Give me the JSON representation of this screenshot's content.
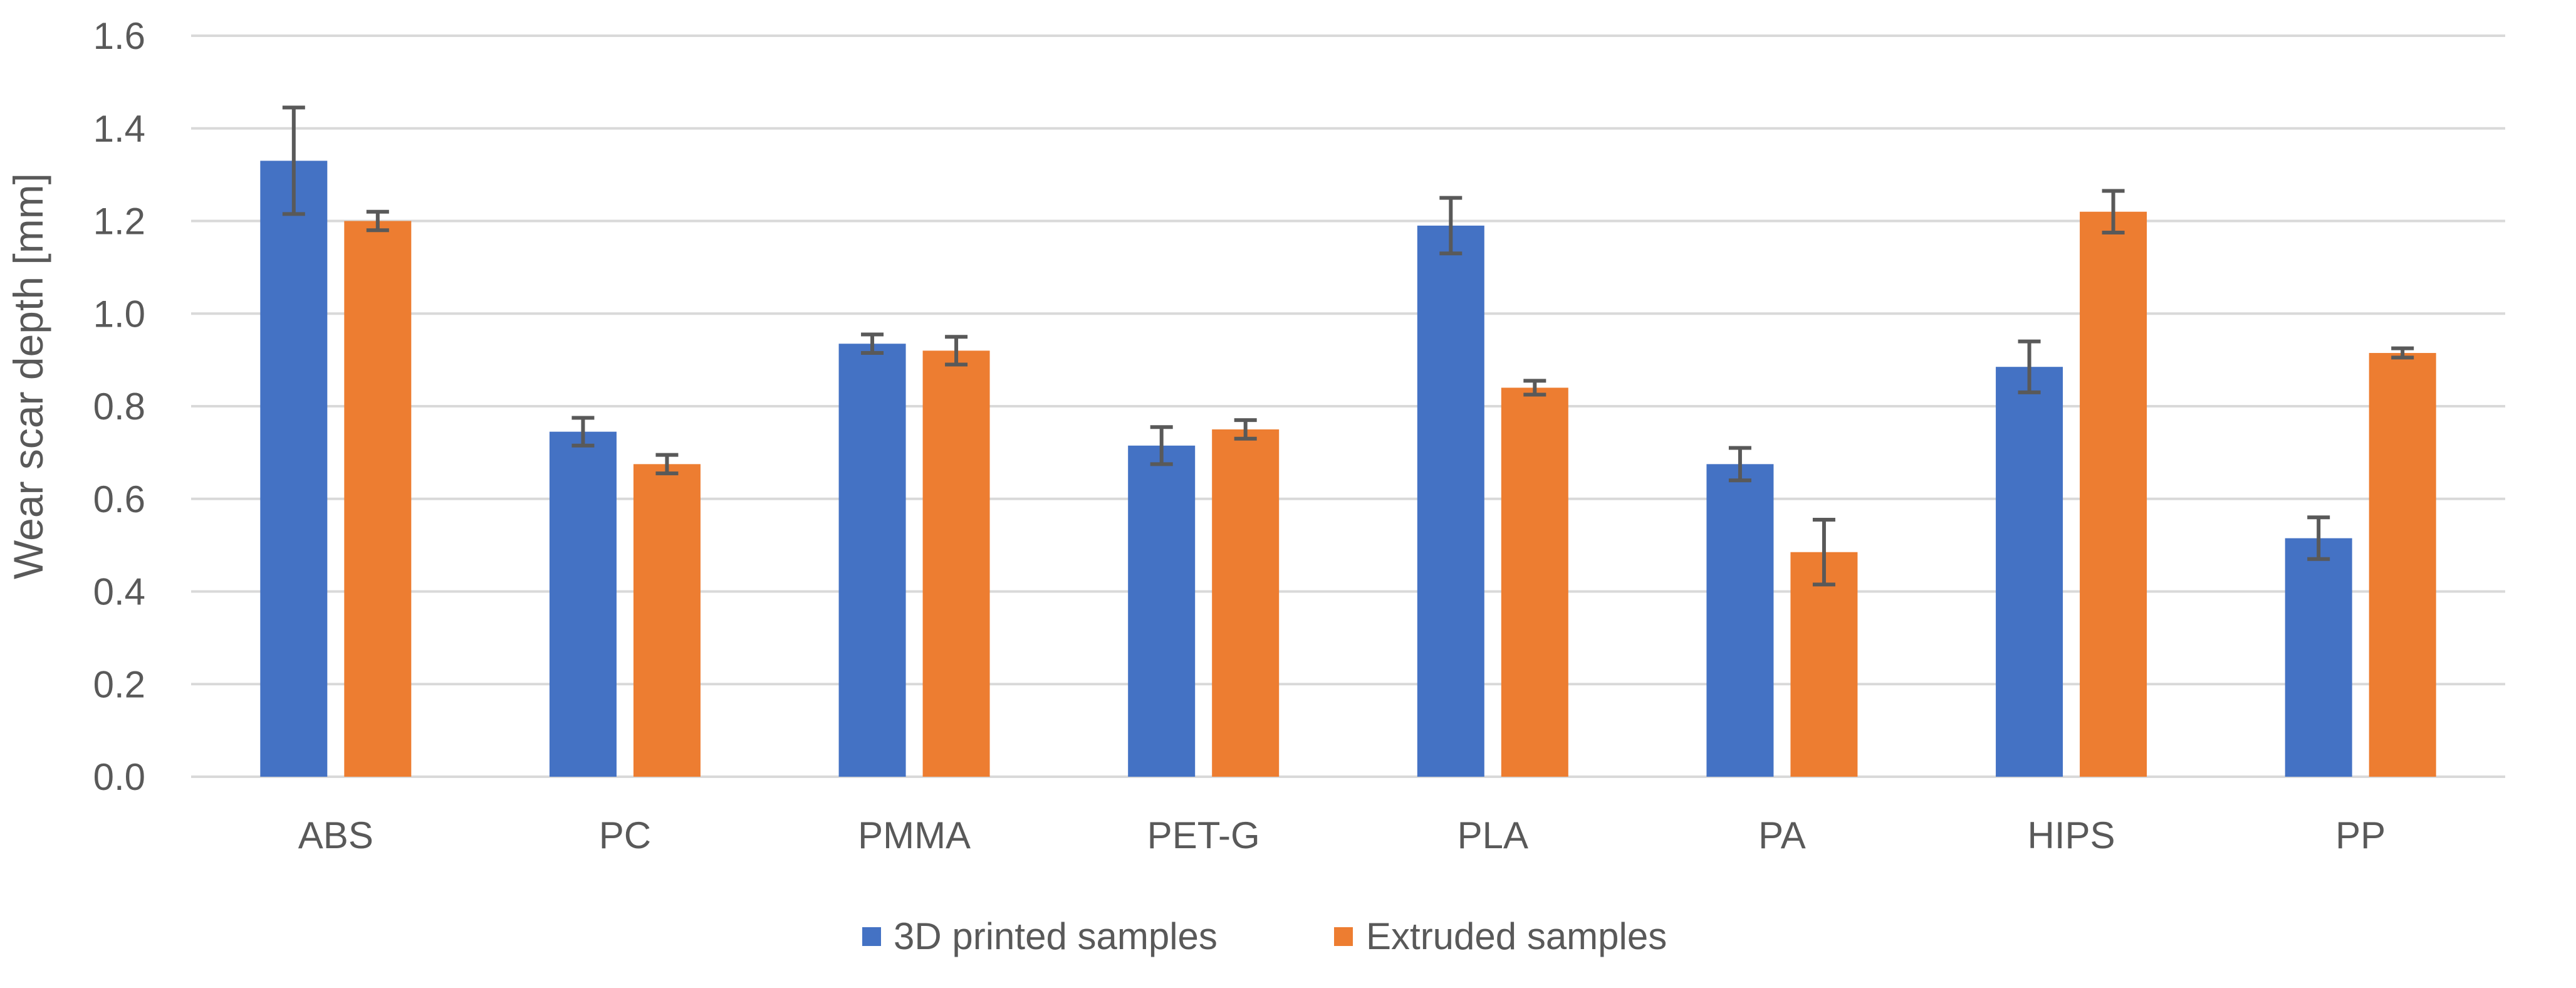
{
  "chart_data": {
    "type": "bar",
    "title": "",
    "xlabel": "",
    "ylabel": "Wear scar depth [mm]",
    "ylim": [
      0,
      1.6
    ],
    "ytick_step": 0.2,
    "yticks": [
      "0.0",
      "0.2",
      "0.4",
      "0.6",
      "0.8",
      "1.0",
      "1.2",
      "1.4",
      "1.6"
    ],
    "grid": true,
    "legend_position": "bottom-center",
    "categories": [
      "ABS",
      "PC",
      "PMMA",
      "PET-G",
      "PLA",
      "PA",
      "HIPS",
      "PP"
    ],
    "series": [
      {
        "name": "3D printed samples",
        "color": "#4472C4",
        "values": [
          1.33,
          0.745,
          0.935,
          0.715,
          1.19,
          0.675,
          0.885,
          0.515
        ],
        "errors": [
          0.115,
          0.03,
          0.02,
          0.04,
          0.06,
          0.035,
          0.055,
          0.045
        ]
      },
      {
        "name": "Extruded samples",
        "color": "#ED7D31",
        "values": [
          1.2,
          0.675,
          0.92,
          0.75,
          0.84,
          0.485,
          1.22,
          0.915
        ],
        "errors": [
          0.02,
          0.02,
          0.03,
          0.02,
          0.015,
          0.07,
          0.045,
          0.01
        ]
      }
    ],
    "error_bar_color": "#595959"
  }
}
